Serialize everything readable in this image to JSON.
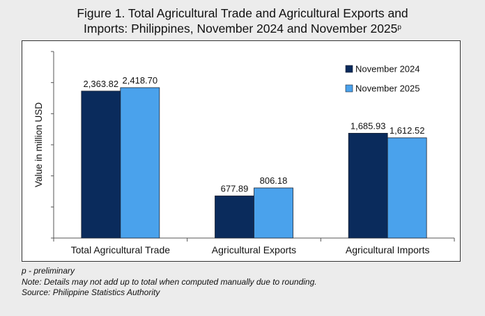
{
  "title_line1": "Figure 1. Total Agricultural Trade and Agricultural Exports and",
  "title_line2": "Imports: Philippines, November 2024 and November 2025",
  "title_superscript": "p",
  "notes": {
    "preliminary": "p - preliminary",
    "rounding": "Note: Details may not add up to total when computed manually due to rounding.",
    "source": "Source: Philippine Statistics Authority"
  },
  "chart_data": {
    "type": "bar",
    "categories": [
      "Total Agricultural Trade",
      "Agricultural Exports",
      "Agricultural Imports"
    ],
    "series": [
      {
        "name": "November 2024",
        "values": [
          2363.82,
          677.89,
          1685.93
        ],
        "labels": [
          "2,363.82",
          "677.89",
          "1,685.93"
        ],
        "color": "#0a2b5c"
      },
      {
        "name": "November 2025",
        "values": [
          2418.7,
          806.18,
          1612.52
        ],
        "labels": [
          "2,418.70",
          "806.18",
          "1,612.52"
        ],
        "color": "#4aa2ec"
      }
    ],
    "ylabel": "Value in million USD",
    "ylim": [
      0,
      3000
    ],
    "ytick_step": 500,
    "ytick_labels_shown": false,
    "grid": false,
    "legend": "top-right"
  }
}
